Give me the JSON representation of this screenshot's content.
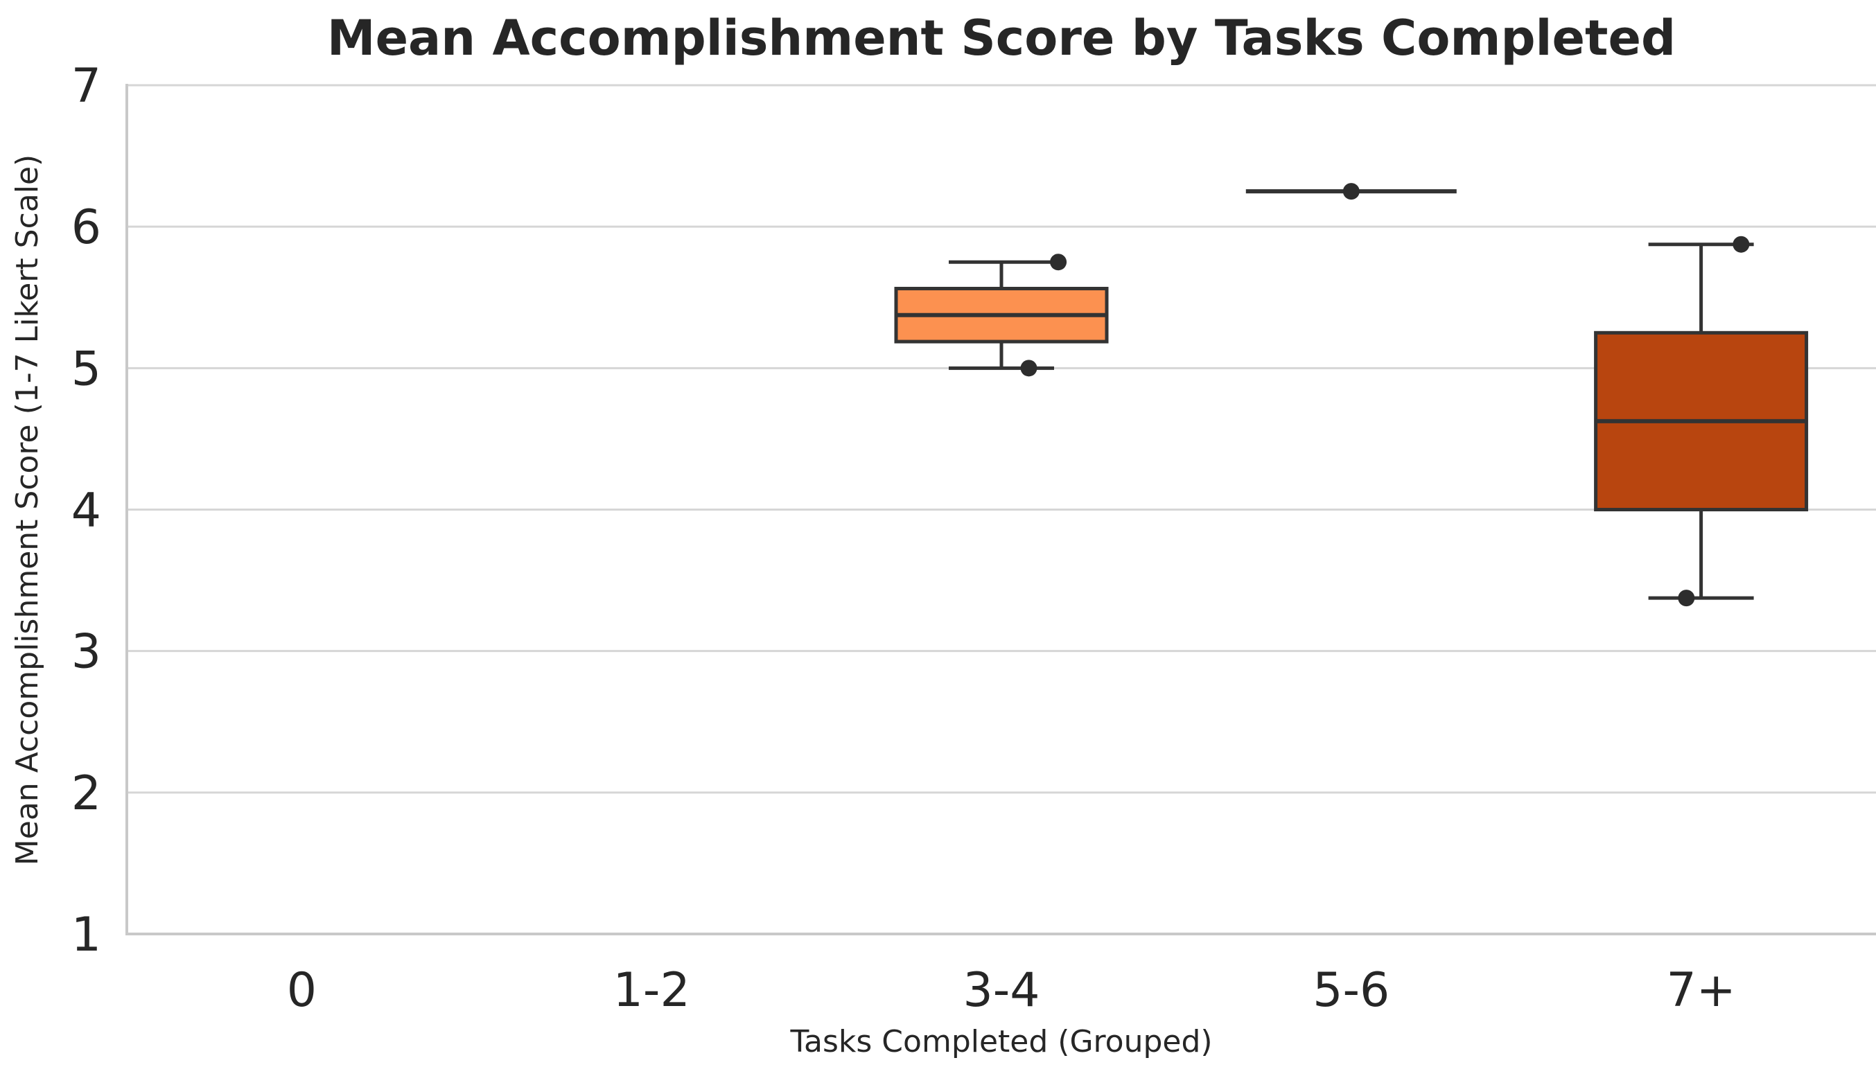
{
  "chart_data": {
    "type": "box",
    "title": "Mean Accomplishment Score by Tasks Completed",
    "xlabel": "Tasks Completed (Grouped)",
    "ylabel": "Mean Accomplishment Score (1-7 Likert Scale)",
    "categories": [
      "0",
      "1-2",
      "3-4",
      "5-6",
      "7+"
    ],
    "ylim": [
      1,
      7
    ],
    "yticks": [
      1,
      2,
      3,
      4,
      5,
      6,
      7
    ],
    "grid": true,
    "legend_position": "none",
    "groups": [
      {
        "category": "0",
        "color": null,
        "box": null,
        "points": []
      },
      {
        "category": "1-2",
        "color": null,
        "box": null,
        "points": []
      },
      {
        "category": "3-4",
        "color": "#fc9150",
        "box": {
          "whisker_low": 5.0,
          "q1": 5.1875,
          "median": 5.375,
          "q3": 5.5625,
          "whisker_high": 5.75
        },
        "points": [
          {
            "value": 5.75,
            "jitter": 0.27
          },
          {
            "value": 5.0,
            "jitter": 0.13
          }
        ]
      },
      {
        "category": "5-6",
        "color": null,
        "box": {
          "whisker_low": 6.25,
          "q1": 6.25,
          "median": 6.25,
          "q3": 6.25,
          "whisker_high": 6.25
        },
        "points": [
          {
            "value": 6.25,
            "jitter": 0.0
          }
        ]
      },
      {
        "category": "7+",
        "color": "#b8450f",
        "box": {
          "whisker_low": 3.375,
          "q1": 4.0,
          "median": 4.625,
          "q3": 5.25,
          "whisker_high": 5.875
        },
        "points": [
          {
            "value": 5.875,
            "jitter": 0.19
          },
          {
            "value": 3.375,
            "jitter": -0.07
          }
        ]
      }
    ],
    "style": {
      "edge_color": "#333333",
      "point_color": "#2d2d2d",
      "grid_color": "#d6d6d6",
      "spine_color": "#c9c9c9",
      "text_color": "#262626",
      "background": "#ffffff"
    }
  }
}
